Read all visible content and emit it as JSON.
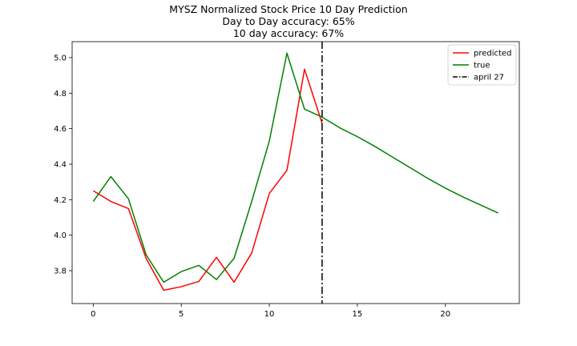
{
  "chart_data": {
    "type": "line",
    "title": [
      "MYSZ Normalized Stock Price 10 Day Prediction",
      "Day to Day accuracy: 65%",
      "10 day accuracy: 67%"
    ],
    "xlabel": "",
    "ylabel": "",
    "xlim": [
      -1.2,
      24.2
    ],
    "ylim": [
      3.615,
      5.09
    ],
    "xticks": [
      0,
      5,
      10,
      15,
      20
    ],
    "yticks": [
      3.8,
      4.0,
      4.2,
      4.4,
      4.6,
      4.8,
      5.0
    ],
    "ytick_labels": [
      "3.8",
      "4.0",
      "4.2",
      "4.4",
      "4.6",
      "4.8",
      "5.0"
    ],
    "grid": false,
    "legend_position": "top-right",
    "series": [
      {
        "name": "predicted",
        "color": "#ff0000",
        "x": [
          0,
          1,
          2,
          3,
          4,
          5,
          6,
          7,
          8,
          9,
          10,
          11,
          12,
          13
        ],
        "values": [
          4.25,
          4.19,
          4.15,
          3.87,
          3.69,
          3.71,
          3.74,
          3.875,
          3.735,
          3.9,
          4.235,
          4.365,
          4.935,
          4.63
        ]
      },
      {
        "name": "true",
        "color": "#008000",
        "x": [
          0,
          1,
          2,
          3,
          4,
          5,
          6,
          7,
          8,
          9,
          10,
          11,
          12,
          13,
          14,
          15,
          16,
          17,
          18,
          19,
          20,
          21,
          22,
          23
        ],
        "values": [
          4.19,
          4.33,
          4.205,
          3.89,
          3.735,
          3.795,
          3.83,
          3.75,
          3.87,
          4.19,
          4.53,
          5.025,
          4.71,
          4.665,
          4.605,
          4.555,
          4.5,
          4.44,
          4.38,
          4.32,
          4.265,
          4.215,
          4.17,
          4.125
        ]
      }
    ],
    "vline": {
      "x": 13,
      "label": "april 27",
      "color": "#000000",
      "style": "dashdot"
    }
  }
}
